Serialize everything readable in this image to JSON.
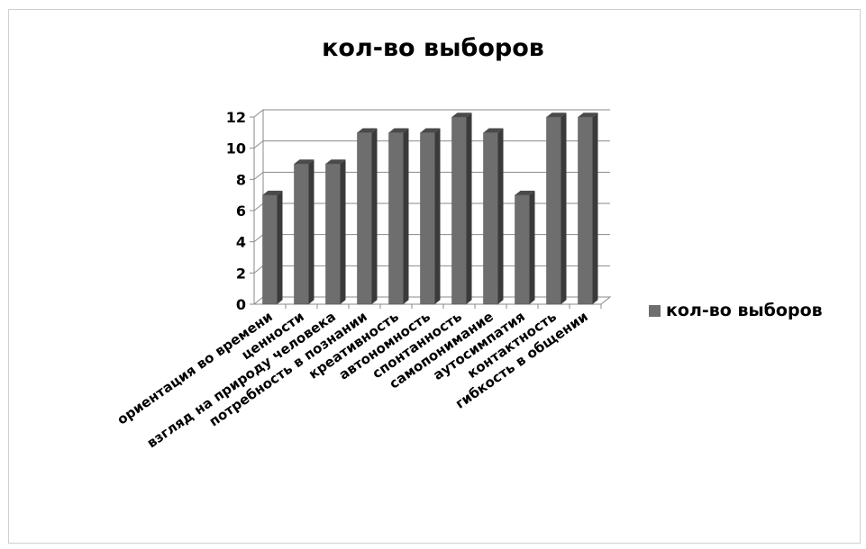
{
  "chart_data": {
    "type": "bar",
    "title": "кол-во выборов",
    "categories": [
      "ориентация во времени",
      "ценности",
      "взгляд на природу человека",
      "потребность в познании",
      "креативность",
      "автономность",
      "спонтанность",
      "самопонимание",
      "аутосимпатия",
      "контактность",
      "гибкость в общении"
    ],
    "series": [
      {
        "name": "кол-во выборов",
        "values": [
          7,
          9,
          9,
          11,
          11,
          11,
          12,
          11,
          7,
          12,
          12
        ]
      }
    ],
    "ylim": [
      0,
      12
    ],
    "yticks": [
      "0",
      "2",
      "4",
      "6",
      "8",
      "10",
      "12"
    ],
    "grid": true,
    "legend": "right",
    "colors": {
      "bar": "#6e6e6e",
      "bar_top": "#4a4a4a",
      "bar_side": "#3a3a3a",
      "grid": "#8a8a8a"
    }
  }
}
